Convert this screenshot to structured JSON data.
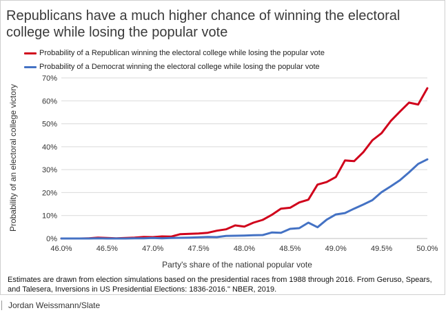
{
  "title": "Republicans have a much higher chance of winning the electoral college while losing the popular vote",
  "footnote": "Estimates are drawn from election simulations based on the presidential races from 1988 through 2016. From Geruso, Spears, and Talesera, Inversions in US Presidential Elections: 1836-2016.\" NBER, 2019.",
  "credit": "Jordan Weissmann/Slate",
  "colors": {
    "republican": "#d0021b",
    "democrat": "#4472c4",
    "grid": "#d9d9d9",
    "axis": "#bfbfbf"
  },
  "chart_data": {
    "type": "line",
    "title": "Republicans have a much higher chance of winning the electoral college while losing the popular vote",
    "xlabel": "Party's share of the national popular vote",
    "ylabel": "Probability of an electoral college victory",
    "xlim": [
      46.0,
      50.0
    ],
    "ylim": [
      0,
      70
    ],
    "xticks": [
      46.0,
      46.5,
      47.0,
      47.5,
      48.0,
      48.5,
      49.0,
      49.5,
      50.0
    ],
    "xtick_labels": [
      "46.0%",
      "46.5%",
      "47.0%",
      "47.5%",
      "48.0%",
      "48.5%",
      "49.0%",
      "49.5%",
      "50.0%"
    ],
    "yticks": [
      0,
      10,
      20,
      30,
      40,
      50,
      60,
      70
    ],
    "ytick_labels": [
      "0%",
      "10%",
      "20%",
      "30%",
      "40%",
      "50%",
      "60%",
      "70%"
    ],
    "grid": "horizontal",
    "legend_position": "top-left",
    "x": [
      46.0,
      46.1,
      46.2,
      46.3,
      46.4,
      46.5,
      46.6,
      46.7,
      46.8,
      46.9,
      47.0,
      47.1,
      47.2,
      47.3,
      47.4,
      47.5,
      47.6,
      47.7,
      47.8,
      47.9,
      48.0,
      48.1,
      48.2,
      48.3,
      48.4,
      48.5,
      48.6,
      48.7,
      48.8,
      48.9,
      49.0,
      49.1,
      49.2,
      49.3,
      49.4,
      49.5,
      49.6,
      49.7,
      49.8,
      49.9,
      50.0
    ],
    "series": [
      {
        "name": "Probability of a Republican winning the electoral college while losing the popular vote",
        "color": "#d0021b",
        "values": [
          0,
          0,
          0,
          0.1,
          0.4,
          0.2,
          0.1,
          0.2,
          0.4,
          0.7,
          0.6,
          0.9,
          0.8,
          1.9,
          2.0,
          2.2,
          2.5,
          3.4,
          4.0,
          5.7,
          5.2,
          6.9,
          8.1,
          10.3,
          13.0,
          13.4,
          15.7,
          16.9,
          23.5,
          24.6,
          26.8,
          34.0,
          33.7,
          37.6,
          42.8,
          45.9,
          51.2,
          55.3,
          59.2,
          58.4,
          65.5
        ]
      },
      {
        "name": "Probability of a Democrat winning the electoral college while losing the popular vote",
        "color": "#4472c4",
        "values": [
          0,
          0,
          0,
          0,
          0.1,
          0,
          0,
          0,
          0.1,
          0.1,
          0.2,
          0.1,
          0.2,
          0.3,
          0.4,
          0.5,
          0.7,
          0.6,
          1.1,
          1.2,
          1.3,
          1.4,
          1.5,
          2.6,
          2.5,
          4.2,
          4.5,
          6.9,
          4.9,
          8.2,
          10.5,
          11.1,
          13.0,
          14.8,
          16.7,
          20.2,
          22.7,
          25.4,
          28.8,
          32.5,
          34.5
        ]
      }
    ]
  }
}
